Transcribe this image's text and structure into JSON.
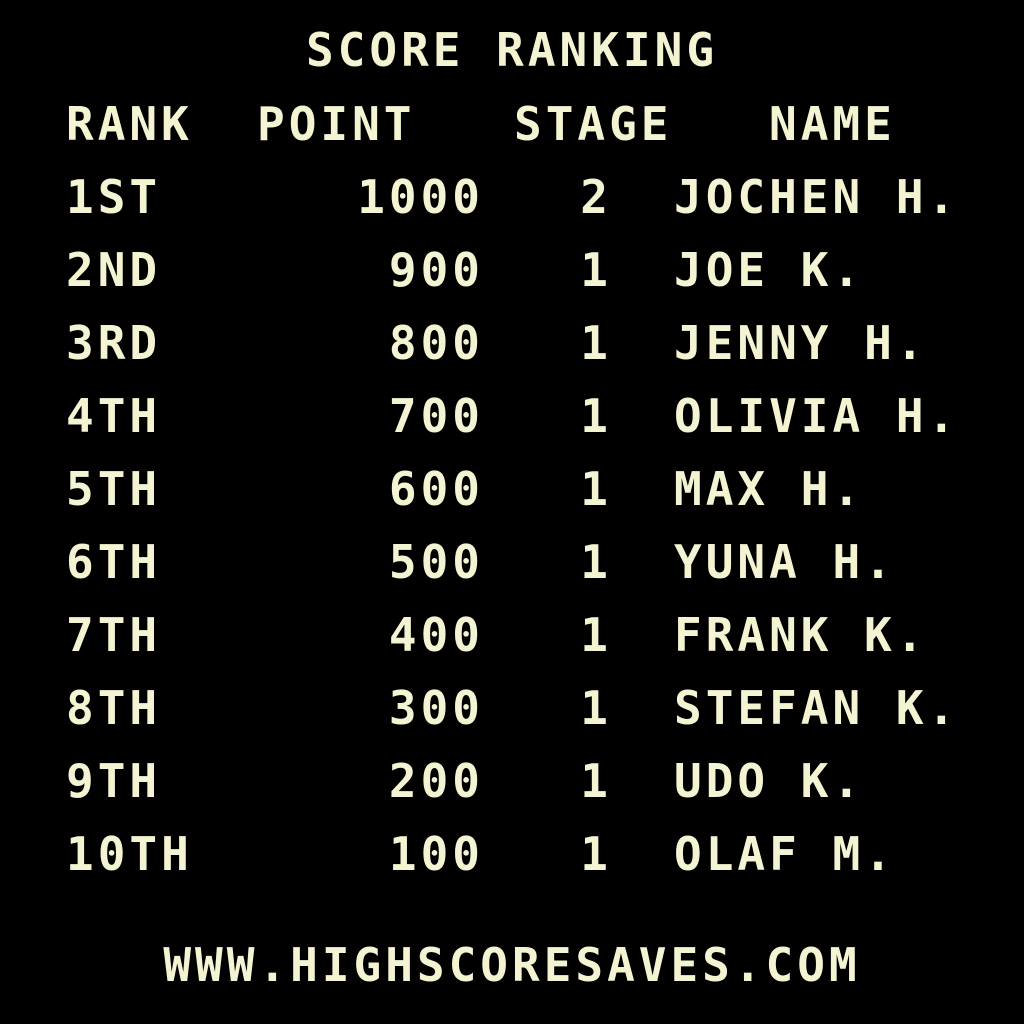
{
  "title": "SCORE RANKING",
  "headers": {
    "rank": "RANK",
    "point": "POINT",
    "stage": "STAGE",
    "name": "NAME"
  },
  "rows": [
    {
      "rank": "1ST",
      "point": "1000",
      "stage": "2",
      "name": "JOCHEN H."
    },
    {
      "rank": "2ND",
      "point": "900",
      "stage": "1",
      "name": "JOE K."
    },
    {
      "rank": "3RD",
      "point": "800",
      "stage": "1",
      "name": "JENNY H."
    },
    {
      "rank": "4TH",
      "point": "700",
      "stage": "1",
      "name": "OLIVIA H."
    },
    {
      "rank": "5TH",
      "point": "600",
      "stage": "1",
      "name": "MAX H."
    },
    {
      "rank": "6TH",
      "point": "500",
      "stage": "1",
      "name": "YUNA H."
    },
    {
      "rank": "7TH",
      "point": "400",
      "stage": "1",
      "name": "FRANK K."
    },
    {
      "rank": "8TH",
      "point": "300",
      "stage": "1",
      "name": "STEFAN K."
    },
    {
      "rank": "9TH",
      "point": "200",
      "stage": "1",
      "name": "UDO K."
    },
    {
      "rank": "10TH",
      "point": "100",
      "stage": "1",
      "name": "OLAF M."
    }
  ],
  "footer": "WWW.HIGHSCORESAVES.COM",
  "colors": {
    "text": "#f4f4d2",
    "background": "#000000"
  }
}
